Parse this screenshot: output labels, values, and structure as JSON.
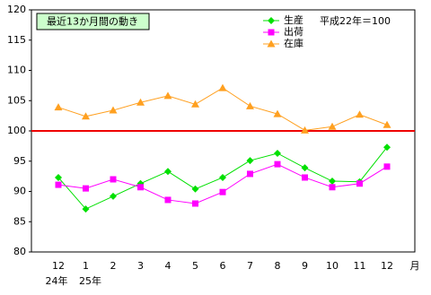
{
  "chart_data": {
    "type": "line",
    "title": "最近13か月間の動き",
    "annotation": "平成22年＝100",
    "categories": [
      "12",
      "1",
      "2",
      "3",
      "4",
      "5",
      "6",
      "7",
      "8",
      "9",
      "10",
      "11",
      "12"
    ],
    "year_labels": [
      "24年",
      "25年"
    ],
    "x_unit": "月",
    "series": [
      {
        "name": "生産",
        "color": "#00e000",
        "marker": "diamond",
        "values": [
          92.3,
          87.1,
          89.2,
          91.3,
          93.3,
          90.4,
          92.3,
          95.1,
          96.3,
          93.9,
          91.7,
          91.6,
          97.3
        ]
      },
      {
        "name": "出荷",
        "color": "#ff00ff",
        "marker": "square",
        "values": [
          91.1,
          90.5,
          92.0,
          90.7,
          88.6,
          88.0,
          89.9,
          92.9,
          94.5,
          92.3,
          90.7,
          91.3,
          94.1
        ]
      },
      {
        "name": "在庫",
        "color": "#ffa020",
        "marker": "triangle",
        "values": [
          103.9,
          102.4,
          103.4,
          104.7,
          105.8,
          104.4,
          107.1,
          104.1,
          102.8,
          100.1,
          100.7,
          102.7,
          101.0
        ]
      }
    ],
    "reference_line": {
      "value": 100,
      "color": "#ee0000"
    },
    "ylim": [
      80,
      120
    ],
    "yticks": [
      80,
      85,
      90,
      95,
      100,
      105,
      110,
      115,
      120
    ]
  }
}
